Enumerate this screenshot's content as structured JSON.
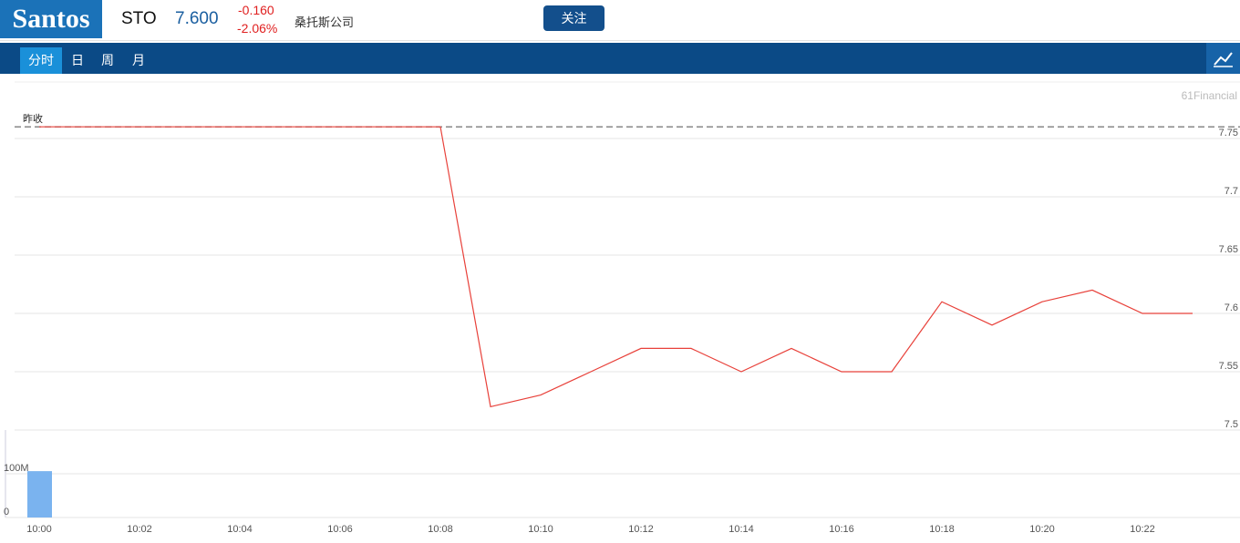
{
  "header": {
    "logo": "Santos",
    "ticker": "STO",
    "price": "7.600",
    "change": "-0.160",
    "change_pct": "-2.06%",
    "name": "桑托斯公司",
    "button": "关注"
  },
  "tabs": [
    "分时",
    "日",
    "周",
    "月"
  ],
  "watermark": "61Financial",
  "chart_data": [
    {
      "type": "line",
      "color": "#e8413a",
      "categories": [
        "10:00",
        null,
        "10:02",
        null,
        "10:04",
        null,
        "10:06",
        null,
        "10:08",
        null,
        "10:10",
        null,
        "10:12",
        null,
        "10:14",
        null,
        "10:16",
        null,
        "10:18",
        null,
        "10:20",
        null,
        "10:22",
        null
      ],
      "values": [
        7.76,
        7.76,
        7.76,
        7.76,
        7.76,
        7.76,
        7.76,
        7.76,
        7.76,
        7.52,
        7.53,
        7.55,
        7.57,
        7.57,
        7.55,
        7.57,
        7.55,
        7.55,
        7.61,
        7.59,
        7.61,
        7.62,
        7.6,
        7.6
      ],
      "ylim": [
        7.5,
        7.8
      ],
      "yticks": [
        7.5,
        7.55,
        7.6,
        7.65,
        7.7,
        7.75
      ],
      "grid": true,
      "reference_line": {
        "label": "昨收",
        "value": 7.76
      }
    },
    {
      "type": "bar",
      "color": "#7ab3ef",
      "categories": [
        "10:00"
      ],
      "values": [
        106000000
      ],
      "ylim": [
        0,
        200000000
      ],
      "yticks": [
        0,
        {
          "value": 100000000,
          "label": "100M"
        }
      ],
      "grid": true
    }
  ]
}
